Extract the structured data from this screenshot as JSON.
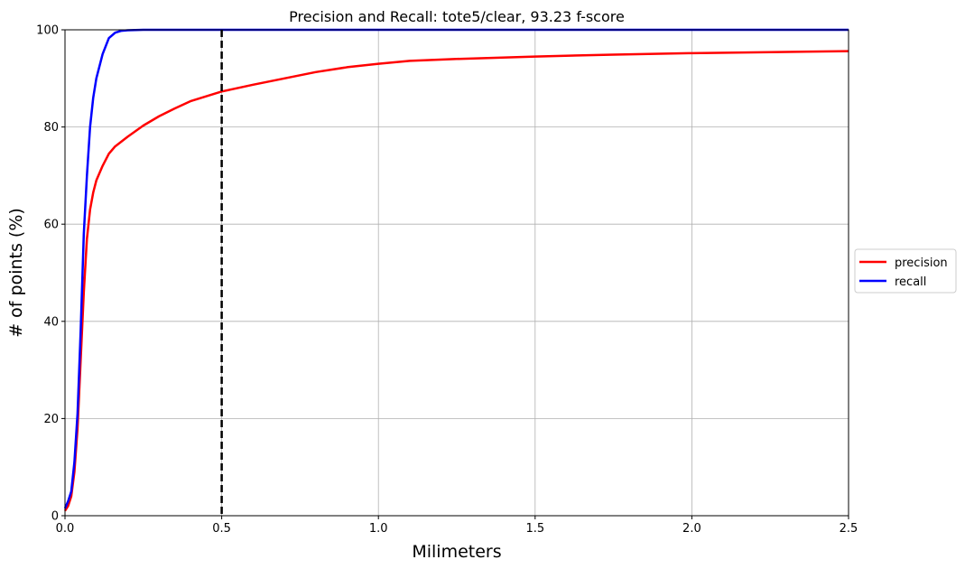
{
  "chart_data": {
    "type": "line",
    "title": "Precision and Recall: tote5/clear, 93.23 f-score",
    "xlabel": "Milimeters",
    "ylabel": "# of points (%)",
    "xlim": [
      0,
      2.5
    ],
    "ylim": [
      0,
      100
    ],
    "xticks": [
      0.0,
      0.5,
      1.0,
      1.5,
      2.0,
      2.5
    ],
    "xtick_labels": [
      "0.0",
      "0.5",
      "1.0",
      "1.5",
      "2.0",
      "2.5"
    ],
    "yticks": [
      0,
      20,
      40,
      60,
      80,
      100
    ],
    "ytick_labels": [
      "0",
      "20",
      "40",
      "60",
      "80",
      "100"
    ],
    "grid": true,
    "legend_position": "outside-right",
    "threshold": {
      "x": 0.5,
      "style": "dashed",
      "color": "#000000"
    },
    "series": [
      {
        "name": "precision",
        "color": "#ff0000",
        "x": [
          0,
          0.01,
          0.02,
          0.03,
          0.04,
          0.05,
          0.06,
          0.07,
          0.08,
          0.09,
          0.1,
          0.12,
          0.14,
          0.16,
          0.18,
          0.2,
          0.25,
          0.3,
          0.35,
          0.4,
          0.45,
          0.5,
          0.6,
          0.7,
          0.8,
          0.9,
          1.0,
          1.1,
          1.25,
          1.5,
          1.75,
          2.0,
          2.25,
          2.5
        ],
        "y": [
          1.0,
          2.0,
          4.0,
          9.0,
          18.0,
          32.0,
          46.0,
          57.0,
          63.0,
          66.5,
          69.0,
          72.0,
          74.5,
          76.0,
          77.0,
          78.0,
          80.3,
          82.2,
          83.8,
          85.3,
          86.3,
          87.3,
          88.7,
          90.0,
          91.3,
          92.3,
          93.0,
          93.6,
          94.0,
          94.5,
          94.9,
          95.2,
          95.4,
          95.6
        ]
      },
      {
        "name": "recall",
        "color": "#0000ff",
        "x": [
          0,
          0.01,
          0.02,
          0.03,
          0.04,
          0.05,
          0.06,
          0.07,
          0.08,
          0.09,
          0.1,
          0.12,
          0.14,
          0.16,
          0.18,
          0.2,
          0.25,
          0.3,
          0.5,
          1.0,
          1.5,
          2.0,
          2.5
        ],
        "y": [
          1.5,
          3.0,
          5.0,
          11.0,
          21.0,
          38.0,
          58.0,
          70.0,
          80.0,
          86.0,
          90.0,
          95.0,
          98.3,
          99.4,
          99.8,
          99.9,
          100,
          100,
          100,
          100,
          100,
          100,
          100
        ]
      }
    ]
  }
}
